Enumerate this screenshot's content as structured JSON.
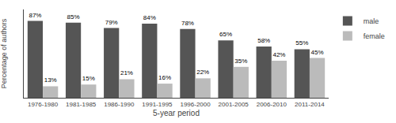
{
  "chart_data": {
    "type": "bar",
    "categories": [
      "1976-1980",
      "1981-1985",
      "1986-1990",
      "1991-1995",
      "1996-2000",
      "2001-2005",
      "2006-2010",
      "2011-2014"
    ],
    "series": [
      {
        "name": "male",
        "color": "#555555",
        "values": [
          87,
          85,
          79,
          84,
          78,
          65,
          58,
          55
        ],
        "value_labels": [
          "87%",
          "85%",
          "79%",
          "84%",
          "78%",
          "65%",
          "58%",
          "55%"
        ]
      },
      {
        "name": "female",
        "color": "#bbbbbb",
        "values": [
          13,
          15,
          21,
          16,
          22,
          35,
          42,
          45
        ],
        "value_labels": [
          "13%",
          "15%",
          "21%",
          "16%",
          "22%",
          "35%",
          "42%",
          "45%"
        ]
      }
    ],
    "xlabel": "5-year period",
    "ylabel": "Percentage of authors",
    "ylim": [
      0,
      100
    ],
    "data_labels": true,
    "tick_labels": "x",
    "grid": false,
    "legend": "upper right"
  }
}
